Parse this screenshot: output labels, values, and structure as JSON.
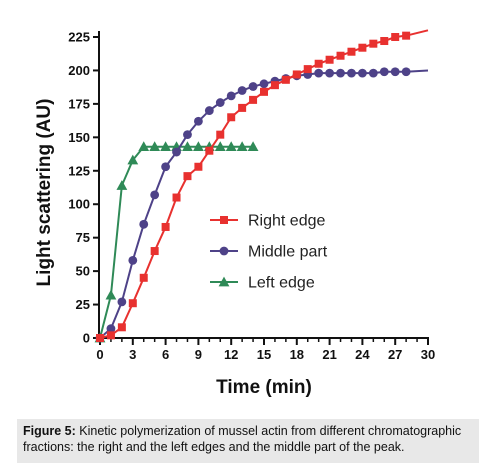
{
  "chart_data": {
    "type": "line",
    "title": "",
    "xlabel": "Time (min)",
    "ylabel": "Light scattering (AU)",
    "xlim": [
      0,
      30
    ],
    "ylim": [
      0,
      225
    ],
    "xticks": [
      0,
      3,
      6,
      9,
      12,
      15,
      18,
      21,
      24,
      27,
      30
    ],
    "yticks": [
      0,
      25,
      50,
      75,
      100,
      125,
      150,
      175,
      200,
      225
    ],
    "grid": false,
    "legend_position": "center-right",
    "series": [
      {
        "name": "Right edge",
        "color": "#e8312f",
        "marker": "square",
        "x": [
          0,
          1,
          2,
          3,
          4,
          5,
          6,
          7,
          8,
          9,
          10,
          11,
          12,
          13,
          14,
          15,
          16,
          17,
          18,
          19,
          20,
          21,
          22,
          23,
          24,
          25,
          26,
          27,
          28
        ],
        "y": [
          0,
          2,
          8,
          26,
          45,
          65,
          83,
          105,
          121,
          128,
          140,
          152,
          165,
          172,
          178,
          184,
          189,
          193,
          197,
          201,
          205,
          208,
          211,
          214,
          217,
          220,
          222,
          225,
          226
        ],
        "line_to": [
          30,
          230
        ]
      },
      {
        "name": "Middle part",
        "color": "#4e4288",
        "marker": "circle",
        "x": [
          0,
          1,
          2,
          3,
          4,
          5,
          6,
          7,
          8,
          9,
          10,
          11,
          12,
          13,
          14,
          15,
          16,
          17,
          18,
          19,
          20,
          21,
          22,
          23,
          24,
          25,
          26,
          27,
          28
        ],
        "y": [
          0,
          7,
          27,
          58,
          85,
          107,
          128,
          139,
          152,
          162,
          170,
          176,
          181,
          185,
          188,
          190,
          192,
          194,
          196,
          197,
          198,
          198,
          198,
          198,
          198,
          198,
          199,
          199,
          199
        ],
        "line_to": [
          30,
          200
        ]
      },
      {
        "name": "Left edge",
        "color": "#2f8a57",
        "marker": "triangle",
        "x": [
          0,
          1,
          2,
          3,
          4,
          5,
          6,
          7,
          8,
          9,
          10,
          11,
          12,
          13,
          14
        ],
        "y": [
          0,
          32,
          114,
          133,
          143,
          143,
          143,
          143,
          143,
          143,
          143,
          143,
          143,
          143,
          143
        ]
      }
    ]
  },
  "caption": {
    "label": "Figure 5:",
    "text": " Kinetic polymerization of mussel actin from different chromatographic fractions: the right and the left edges and the middle part of the peak."
  }
}
